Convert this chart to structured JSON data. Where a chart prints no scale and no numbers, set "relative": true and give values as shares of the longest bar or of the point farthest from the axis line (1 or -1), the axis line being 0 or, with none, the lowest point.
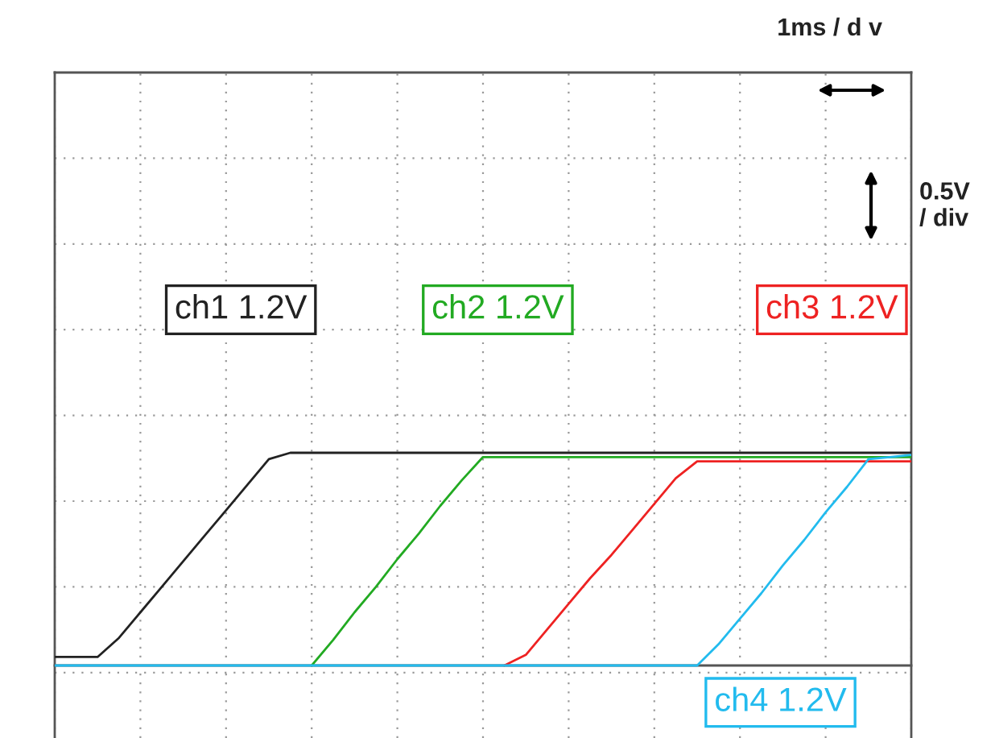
{
  "chart_data": {
    "type": "line",
    "relative": true,
    "grid": true,
    "legend": false,
    "marker": "none",
    "line_style": "solid",
    "categories": [
      null,
      null,
      null,
      null,
      null,
      null,
      null,
      null,
      null,
      null,
      null,
      null,
      null,
      null,
      null,
      null,
      null,
      null,
      null,
      null,
      null,
      null,
      null,
      null,
      null,
      null,
      null,
      null,
      null,
      null,
      null,
      null,
      null,
      null,
      null,
      null,
      null,
      null,
      null,
      null,
      null
    ],
    "series": [
      {
        "name": "ch1 1.2V",
        "color": "#222222",
        "values": [
          0.04,
          0.04,
          0.04,
          0.13,
          0.25,
          0.37,
          0.49,
          0.61,
          0.73,
          0.85,
          0.97,
          1,
          1,
          1,
          1,
          1,
          1,
          1,
          1,
          1,
          1,
          1,
          1,
          1,
          1,
          1,
          1,
          1,
          1,
          1,
          1,
          1,
          1,
          1,
          1,
          1,
          1,
          1,
          1,
          1,
          1
        ]
      },
      {
        "name": "ch2 1.2V",
        "color": "#22aa22",
        "values": [
          null,
          null,
          null,
          null,
          null,
          null,
          null,
          null,
          null,
          null,
          null,
          null,
          0,
          0.12,
          0.25,
          0.37,
          0.5,
          0.62,
          0.75,
          0.87,
          0.98,
          0.98,
          0.98,
          0.98,
          0.98,
          0.98,
          0.98,
          0.98,
          0.98,
          0.98,
          0.98,
          0.98,
          0.98,
          0.98,
          0.98,
          0.98,
          0.98,
          0.98,
          0.98,
          0.98,
          0.98
        ]
      },
      {
        "name": "ch3 1.2V",
        "color": "#ee2222",
        "values": [
          null,
          null,
          null,
          null,
          null,
          null,
          null,
          null,
          null,
          null,
          null,
          null,
          null,
          null,
          null,
          null,
          null,
          null,
          null,
          null,
          null,
          0,
          0.05,
          0.17,
          0.29,
          0.41,
          0.52,
          0.64,
          0.76,
          0.88,
          0.96,
          0.96,
          0.96,
          0.96,
          0.96,
          0.96,
          0.96,
          0.96,
          0.96,
          0.96,
          0.96
        ]
      },
      {
        "name": "ch4 1.2V",
        "color": "#22bbee",
        "values": [
          0,
          0,
          0,
          0,
          0,
          0,
          0,
          0,
          0,
          0,
          0,
          0,
          0,
          0,
          0,
          0,
          0,
          0,
          0,
          0,
          0,
          0,
          0,
          0,
          0,
          0,
          0,
          0,
          0,
          0,
          0,
          0.1,
          0.22,
          0.34,
          0.47,
          0.59,
          0.72,
          0.84,
          0.97,
          0.98,
          0.99
        ]
      }
    ],
    "annotations": [
      "1ms / d v",
      "0.5V\n/ div"
    ]
  }
}
